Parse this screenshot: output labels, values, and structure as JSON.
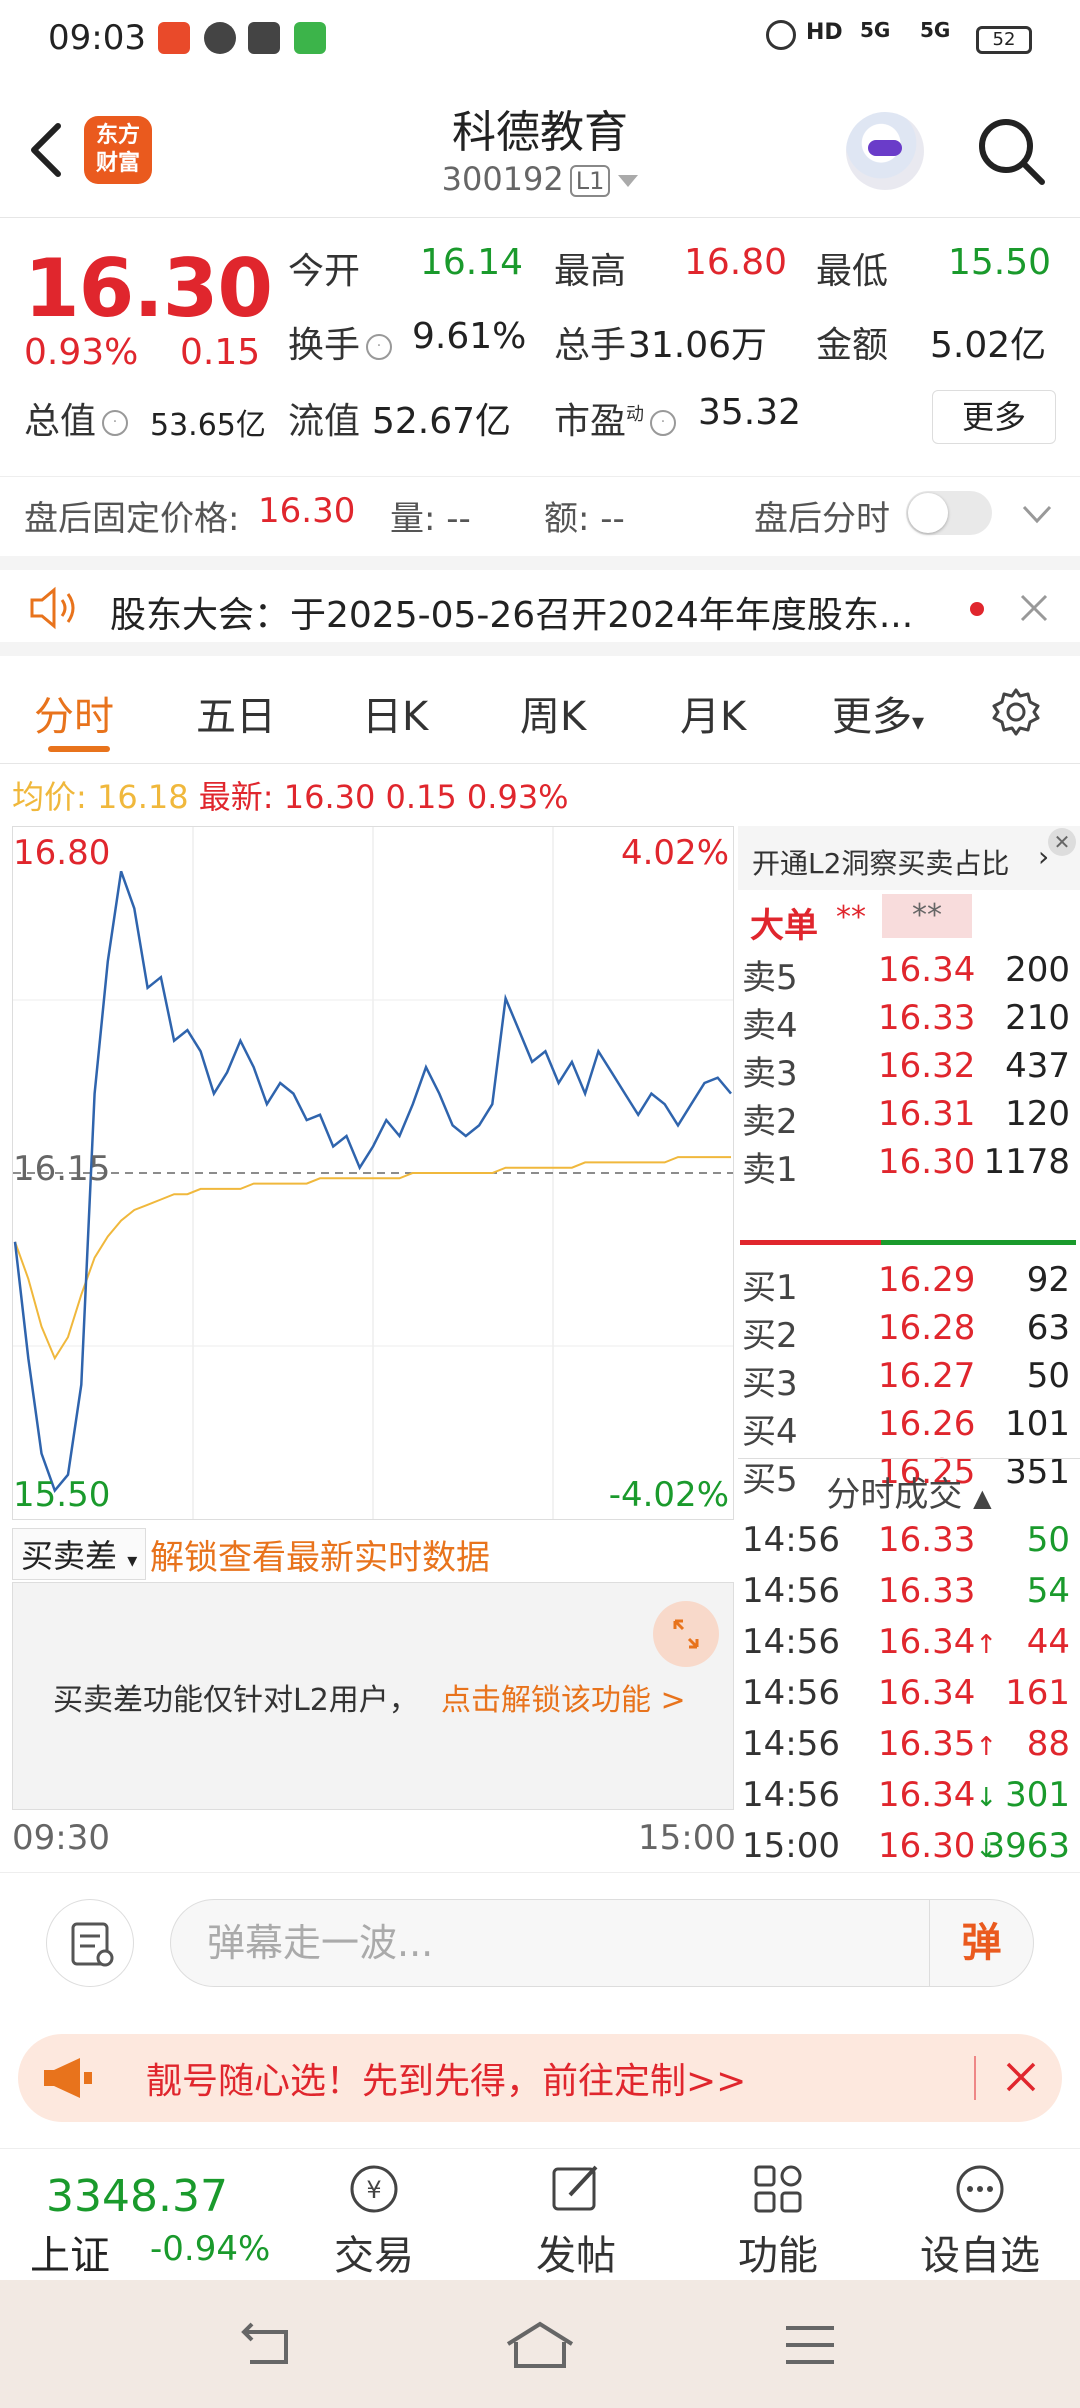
{
  "status_bar": {
    "time": "09:03",
    "battery": "52",
    "signal_1": "5G",
    "signal_2": "5G",
    "hd": "HD"
  },
  "header": {
    "title": "科德教育",
    "code": "300192",
    "level_badge": "L1",
    "logo_text_1": "东方",
    "logo_text_2": "财富"
  },
  "quote": {
    "price": "16.30",
    "change_pct": "0.93%",
    "change": "0.15",
    "open_label": "今开",
    "open": "16.14",
    "high_label": "最高",
    "high": "16.80",
    "low_label": "最低",
    "low": "15.50",
    "turnover_label": "换手",
    "turnover": "9.61%",
    "volume_label": "总手",
    "volume": "31.06万",
    "amount_label": "金额",
    "amount": "5.02亿",
    "mktcap_label": "总值",
    "mktcap": "53.65亿",
    "float_label": "流值",
    "float": "52.67亿",
    "pe_label": "市盈",
    "pe_sup": "动",
    "pe": "35.32",
    "more": "更多"
  },
  "after_hours": {
    "price_label": "盘后固定价格:",
    "price": "16.30",
    "vol_label": "量: --",
    "amt_label": "额: --",
    "toggle_label": "盘后分时"
  },
  "notice": {
    "text": "股东大会：于2025-05-26召开2024年年度股东..."
  },
  "tabs": [
    "分时",
    "五日",
    "日K",
    "周K",
    "月K",
    "更多"
  ],
  "avg_line": {
    "avg_label": "均价:",
    "avg": "16.18",
    "last_label": "最新:",
    "last": "16.30",
    "chg": "0.15",
    "pct": "0.93%"
  },
  "chart_data": {
    "type": "line",
    "y_top_label": "16.80",
    "y_bottom_label": "15.50",
    "y_mid_label": "16.15",
    "pct_top": "4.02%",
    "pct_bottom": "-4.02%",
    "x_start": "09:30",
    "x_end": "15:00",
    "ylim": [
      15.5,
      16.8
    ],
    "series": [
      {
        "values": [
          16.02,
          15.8,
          15.62,
          15.55,
          15.58,
          15.75,
          16.3,
          16.55,
          16.72,
          16.65,
          16.5,
          16.52,
          16.4,
          16.42,
          16.38,
          16.3,
          16.34,
          16.4,
          16.35,
          16.28,
          16.32,
          16.3,
          16.25,
          16.26,
          16.2,
          16.22,
          16.16,
          16.2,
          16.25,
          16.22,
          16.28,
          16.35,
          16.3,
          16.24,
          16.22,
          16.24,
          16.28,
          16.48,
          16.42,
          16.36,
          16.38,
          16.32,
          16.36,
          16.3,
          16.38,
          16.34,
          16.3,
          16.26,
          16.3,
          16.28,
          16.24,
          16.28,
          16.32,
          16.33,
          16.3
        ]
      },
      {
        "values": [
          16.02,
          15.95,
          15.86,
          15.8,
          15.84,
          15.92,
          15.99,
          16.03,
          16.06,
          16.08,
          16.09,
          16.1,
          16.11,
          16.11,
          16.12,
          16.12,
          16.12,
          16.12,
          16.13,
          16.13,
          16.13,
          16.13,
          16.13,
          16.14,
          16.14,
          16.14,
          16.14,
          16.14,
          16.14,
          16.14,
          16.15,
          16.15,
          16.15,
          16.15,
          16.15,
          16.15,
          16.15,
          16.16,
          16.16,
          16.16,
          16.16,
          16.16,
          16.16,
          16.17,
          16.17,
          16.17,
          16.17,
          16.17,
          16.17,
          16.17,
          16.18,
          16.18,
          16.18,
          16.18,
          16.18
        ]
      }
    ]
  },
  "sub_chart": {
    "dropdown": "买卖差",
    "unlock_link": "解锁查看最新实时数据",
    "info_text": "买卖差功能仅针对L2用户，",
    "info_link": "点击解锁该功能 >"
  },
  "order_book": {
    "promo": "开通L2洞察买卖占比",
    "big_order_label": "大单",
    "big_order_value": "**",
    "big_order_value_2": "**",
    "asks": [
      {
        "label": "卖5",
        "price": "16.34",
        "vol": "200"
      },
      {
        "label": "卖4",
        "price": "16.33",
        "vol": "210"
      },
      {
        "label": "卖3",
        "price": "16.32",
        "vol": "437"
      },
      {
        "label": "卖2",
        "price": "16.31",
        "vol": "120"
      },
      {
        "label": "卖1",
        "price": "16.30",
        "vol": "1178"
      }
    ],
    "bids": [
      {
        "label": "买1",
        "price": "16.29",
        "vol": "92"
      },
      {
        "label": "买2",
        "price": "16.28",
        "vol": "63"
      },
      {
        "label": "买3",
        "price": "16.27",
        "vol": "50"
      },
      {
        "label": "买4",
        "price": "16.26",
        "vol": "101"
      },
      {
        "label": "买5",
        "price": "16.25",
        "vol": "351"
      }
    ],
    "trades_title": "分时成交",
    "trades": [
      {
        "time": "14:56",
        "price": "16.33",
        "vol": "50",
        "dir": ""
      },
      {
        "time": "14:56",
        "price": "16.33",
        "vol": "54",
        "dir": ""
      },
      {
        "time": "14:56",
        "price": "16.34",
        "vol": "44",
        "dir": "↑"
      },
      {
        "time": "14:56",
        "price": "16.34",
        "vol": "161",
        "dir": ""
      },
      {
        "time": "14:56",
        "price": "16.35",
        "vol": "88",
        "dir": "↑"
      },
      {
        "time": "14:56",
        "price": "16.34",
        "vol": "301",
        "dir": "↓"
      },
      {
        "time": "15:00",
        "price": "16.30",
        "vol": "3963",
        "dir": "↓"
      }
    ]
  },
  "comment": {
    "placeholder": "弹幕走一波...",
    "send": "弹"
  },
  "promo_banner": {
    "text": "靓号随心选！先到先得，前往定制>>"
  },
  "bottom_nav": {
    "index_value": "3348.37",
    "index_name": "上证",
    "index_pct": "-0.94%",
    "items": [
      "交易",
      "发帖",
      "功能",
      "设自选"
    ]
  },
  "colors": {
    "up": "#e0262d",
    "down": "#1a9a2c",
    "accent": "#e8731c",
    "line": "#2f64ad",
    "avg": "#f0b83c"
  }
}
